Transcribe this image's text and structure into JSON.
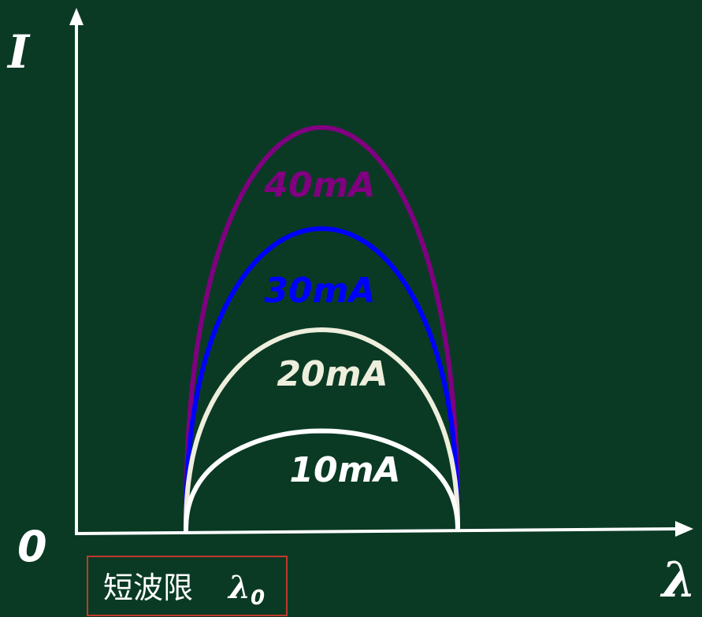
{
  "axes": {
    "y_label": "I",
    "x_label": "λ",
    "origin_label": "0"
  },
  "cutoff": {
    "label": "短波限",
    "symbol": "λ",
    "subscript": "0"
  },
  "curves": [
    {
      "label": "10mA",
      "color": "#ffffff",
      "relative_peak": 0.25
    },
    {
      "label": "20mA",
      "color": "#eeeedd",
      "relative_peak": 0.5
    },
    {
      "label": "30mA",
      "color": "#0000ff",
      "relative_peak": 0.75
    },
    {
      "label": "40mA",
      "color": "#800080",
      "relative_peak": 1.0
    }
  ],
  "colors": {
    "background": "#0a3a24",
    "axis": "#ffffff",
    "cutoff_box": "#c0392b"
  }
}
